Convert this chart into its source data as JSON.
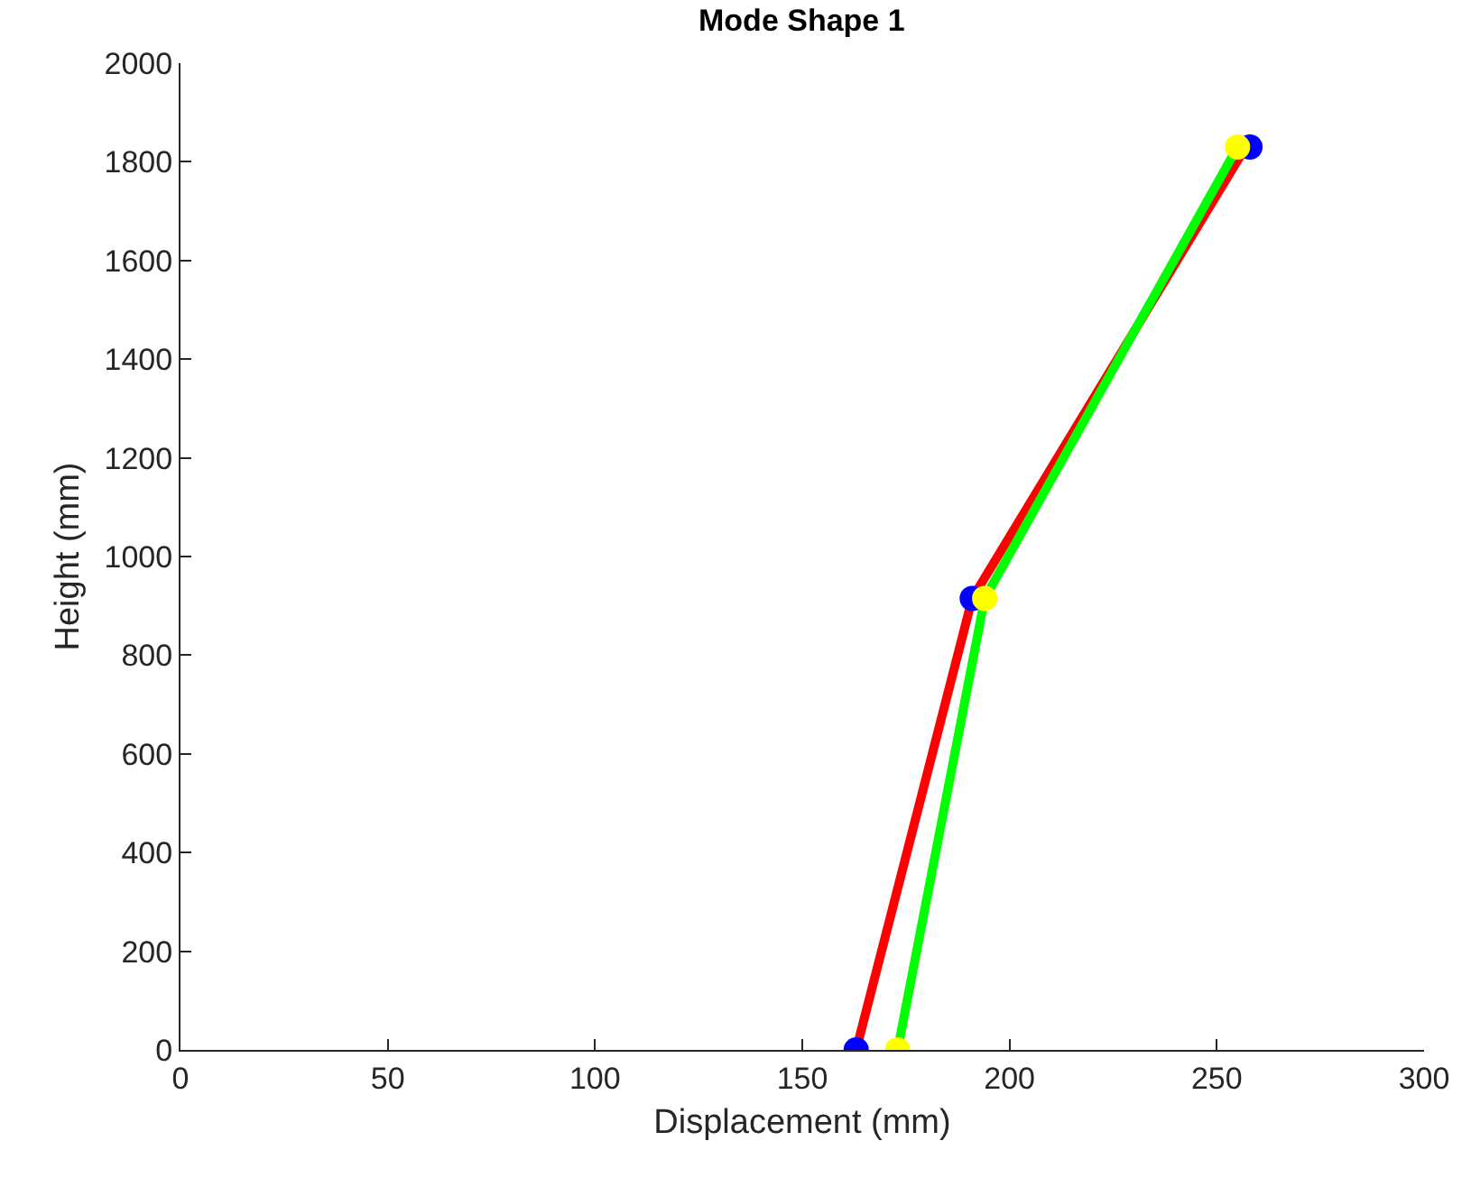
{
  "chart_data": {
    "type": "line",
    "title": "Mode Shape 1",
    "xlabel": "Displacement (mm)",
    "ylabel": "Height (mm)",
    "xlim": [
      0,
      300
    ],
    "xticks": [
      0,
      50,
      100,
      150,
      200,
      250,
      300
    ],
    "ylim": [
      0,
      2000
    ],
    "yticks": [
      0,
      200,
      400,
      600,
      800,
      1000,
      1200,
      1400,
      1600,
      1800,
      2000
    ],
    "grid": false,
    "series": [
      {
        "color": "#ff0000",
        "x": [
          163,
          191,
          257
        ],
        "values": [
          0,
          915,
          1830
        ],
        "marker": "none"
      },
      {
        "color": "#00ff00",
        "x": [
          173,
          194,
          255
        ],
        "values": [
          0,
          915,
          1830
        ],
        "marker": "none"
      },
      {
        "type": "scatter",
        "color": "#0000ff",
        "x": [
          163,
          191,
          258
        ],
        "values": [
          0,
          915,
          1830
        ],
        "marker": "circle"
      },
      {
        "type": "scatter",
        "color": "#ffff00",
        "x": [
          173,
          194,
          255
        ],
        "values": [
          0,
          915,
          1830
        ],
        "marker": "circle"
      }
    ]
  }
}
